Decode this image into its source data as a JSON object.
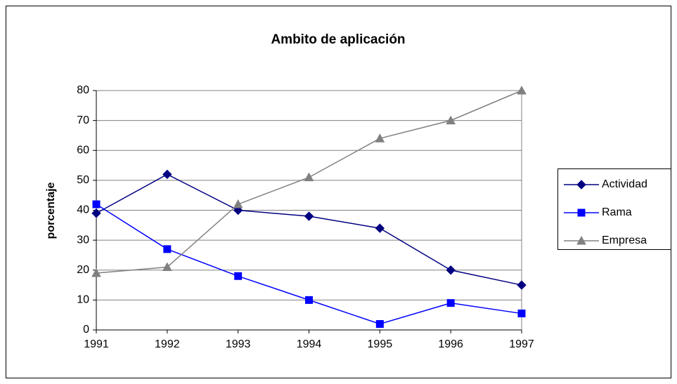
{
  "chart_data": {
    "type": "line",
    "title": "Ambito de aplicación",
    "y_label": "porcentaje",
    "x": [
      1991,
      1992,
      1993,
      1994,
      1995,
      1996,
      1997
    ],
    "xlim": [
      1991,
      1997
    ],
    "xticks": [
      1991,
      1992,
      1993,
      1994,
      1995,
      1996,
      1997
    ],
    "ylim": [
      0,
      80
    ],
    "yticks": [
      0,
      10,
      20,
      30,
      40,
      50,
      60,
      70,
      80
    ],
    "grid": true,
    "legend": "right",
    "series": [
      {
        "name": "Actividad",
        "color": "#000080",
        "marker": "diamond",
        "values": [
          39,
          52,
          40,
          38,
          34,
          20,
          15
        ]
      },
      {
        "name": "Rama",
        "color": "#0000ff",
        "marker": "square",
        "values": [
          42,
          27,
          18,
          10,
          2,
          9,
          5.5
        ]
      },
      {
        "name": "Empresa",
        "color": "#808080",
        "marker": "triangle",
        "values": [
          19,
          21,
          42,
          51,
          64,
          70,
          80
        ]
      }
    ]
  }
}
